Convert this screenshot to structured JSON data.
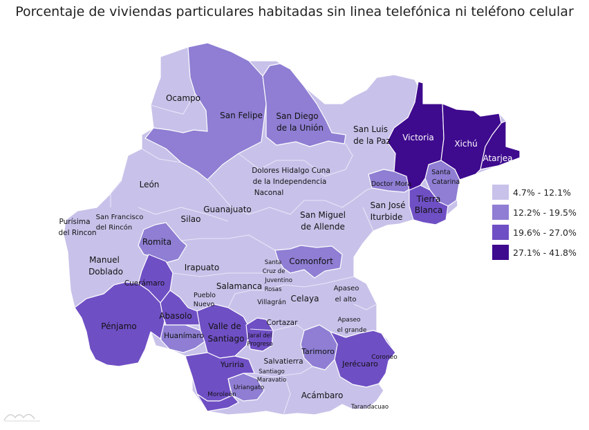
{
  "title": "Porcentaje de viviendas particulares habitadas sin linea telefónica ni teléfono celular",
  "colors": {
    "c1": "#c8c2ea",
    "c2": "#8f7ed3",
    "c3": "#6f4fc4",
    "c4": "#3e0a8e"
  },
  "legend": [
    {
      "label": "4.7% - 12.1%",
      "class": "c1"
    },
    {
      "label": "12.2% - 19.5%",
      "class": "c2"
    },
    {
      "label": "19.6% - 27.0%",
      "class": "c3"
    },
    {
      "label": "27.1% - 41.8%",
      "class": "c4"
    }
  ],
  "municipios": {
    "ocampo": "Ocampo",
    "san_felipe": "San Felipe",
    "san_diego_1": "San Diego",
    "san_diego_2": "de la Unión",
    "san_luis_1": "San Luis",
    "san_luis_2": "de la Paz",
    "victoria": "Victoria",
    "xichu": "Xichú",
    "atarjea": "Atarjea",
    "santa_catarina_1": "Santa",
    "santa_catarina_2": "Catarina",
    "doctor_mora": "Doctor Mora",
    "tierra_blanca_1": "Tierra",
    "tierra_blanca_2": "Blanca",
    "san_jose_1": "San José",
    "san_jose_2": "Iturbide",
    "dolores_1": "Dolores Hidalgo Cuna",
    "dolores_2": "de la Independencia",
    "dolores_3": "Naconal",
    "leon": "León",
    "guanajuato": "Guanajuato",
    "san_miguel_1": "San Miguel",
    "san_miguel_2": "de Allende",
    "purisima_1": "Purísima",
    "purisima_2": "del Rincon",
    "san_francisco_1": "San Francisco",
    "san_francisco_2": "del Rincón",
    "silao": "Silao",
    "romita": "Romita",
    "manuel_1": "Manuel",
    "manuel_2": "Doblado",
    "irapuato": "Irapuato",
    "santa_cruz_1": "Santa",
    "santa_cruz_2": "Cruz de",
    "santa_cruz_3": "Juventino",
    "santa_cruz_4": "Rosas",
    "comonfort": "Comonfort",
    "cueramaro": "Cuerámaro",
    "salamanca": "Salamanca",
    "apaseo_alto_1": "Apaseo",
    "apaseo_alto_2": "el alto",
    "pueblo_nuevo_1": "Pueblo",
    "pueblo_nuevo_2": "Nuevo",
    "villagran": "Villagrán",
    "celaya": "Celaya",
    "penjamo": "Pénjamo",
    "abasolo": "Abasolo",
    "valle_1": "Valle de",
    "valle_2": "Santiago",
    "cortazar": "Cortazar",
    "apaseo_grande_1": "Apaseo",
    "apaseo_grande_2": "el grande",
    "huanimaro": "Huanímaro",
    "jaral_1": "Jaral del",
    "jaral_2": "Progreso",
    "tarimoro": "Tarimoro",
    "coroneo": "Coroneo",
    "jerecuaro": "Jerécuaro",
    "salvatierra": "Salvatierra",
    "yuriria": "Yuriria",
    "santiago_1": "Santiago",
    "santiago_2": "Maravatio",
    "uriangato": "Uriangato",
    "moroleon": "Moroleón",
    "acambaro": "Acámbaro",
    "tarandacuao": "Tarandacuao"
  }
}
